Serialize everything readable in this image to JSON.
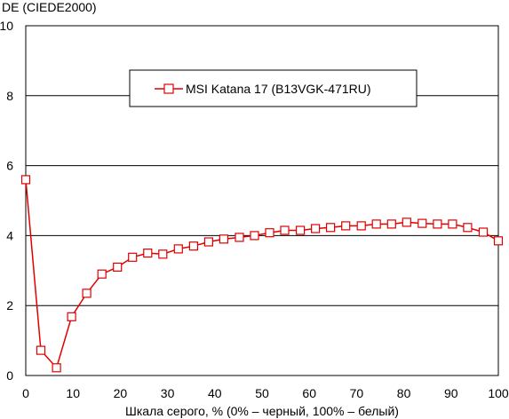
{
  "chart_data": {
    "type": "line",
    "ylabel": "DE (CIEDE2000)",
    "xlabel": "Шкала серого, % (0% – черный, 100% – белый)",
    "xlim": [
      0,
      100
    ],
    "ylim": [
      0,
      10
    ],
    "x_ticks": [
      "0",
      "10",
      "20",
      "30",
      "40",
      "50",
      "60",
      "70",
      "80",
      "90",
      "100"
    ],
    "y_ticks": [
      "0",
      "2",
      "4",
      "6",
      "8",
      "10"
    ],
    "grid": "horizontal",
    "legend_position": "top-center",
    "series": [
      {
        "name": "MSI Katana 17 (B13VGK-471RU)",
        "color": "#e00000",
        "marker": "square-open",
        "x": [
          0,
          3.2,
          6.5,
          9.7,
          12.9,
          16.1,
          19.4,
          22.6,
          25.8,
          29.0,
          32.3,
          35.5,
          38.7,
          41.9,
          45.2,
          48.4,
          51.6,
          54.8,
          58.1,
          61.3,
          64.5,
          67.7,
          71.0,
          74.2,
          77.4,
          80.6,
          83.9,
          87.1,
          90.3,
          93.5,
          96.8,
          100
        ],
        "y": [
          5.6,
          0.72,
          0.22,
          1.68,
          2.35,
          2.9,
          3.1,
          3.38,
          3.5,
          3.47,
          3.62,
          3.7,
          3.82,
          3.9,
          3.95,
          4.0,
          4.08,
          4.15,
          4.15,
          4.2,
          4.23,
          4.28,
          4.28,
          4.33,
          4.33,
          4.38,
          4.35,
          4.33,
          4.33,
          4.23,
          4.1,
          3.85
        ]
      }
    ]
  }
}
